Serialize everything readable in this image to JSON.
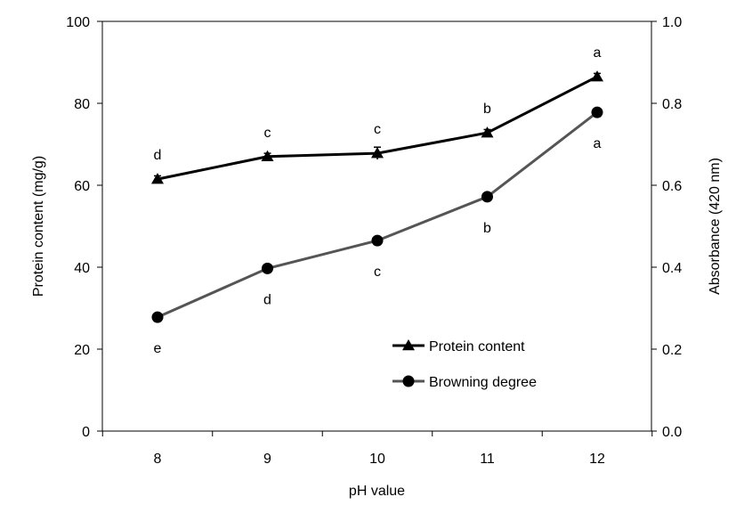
{
  "chart_data": {
    "type": "line",
    "title": "",
    "xlabel": "pH value",
    "ylabel_left": "Protein content (mg/g)",
    "ylabel_right": "Absorbance (420 nm)",
    "x": [
      8,
      9,
      10,
      11,
      12
    ],
    "x_tick_labels": [
      "8",
      "9",
      "10",
      "11",
      "12"
    ],
    "ylim_left": [
      0,
      100
    ],
    "ylim_right": [
      0,
      1.0
    ],
    "y_ticks_left": [
      "0",
      "20",
      "40",
      "60",
      "80",
      "100"
    ],
    "y_ticks_right": [
      "0.0",
      "0.2",
      "0.4",
      "0.6",
      "0.8",
      "1.0"
    ],
    "grid": false,
    "legend_position": "bottom-right",
    "series": [
      {
        "name": "Protein content",
        "axis": "left",
        "marker": "triangle",
        "color": "#000000",
        "values": [
          61.5,
          67.0,
          67.8,
          72.8,
          86.5
        ],
        "error": [
          0.8,
          0.8,
          1.5,
          0.8,
          0.8
        ],
        "letters": [
          "d",
          "c",
          "c",
          "b",
          "a"
        ]
      },
      {
        "name": "Browning degree",
        "axis": "right",
        "marker": "circle",
        "color": "#555555",
        "values": [
          0.278,
          0.397,
          0.465,
          0.572,
          0.778
        ],
        "letters": [
          "e",
          "d",
          "c",
          "b",
          "a"
        ]
      }
    ]
  }
}
